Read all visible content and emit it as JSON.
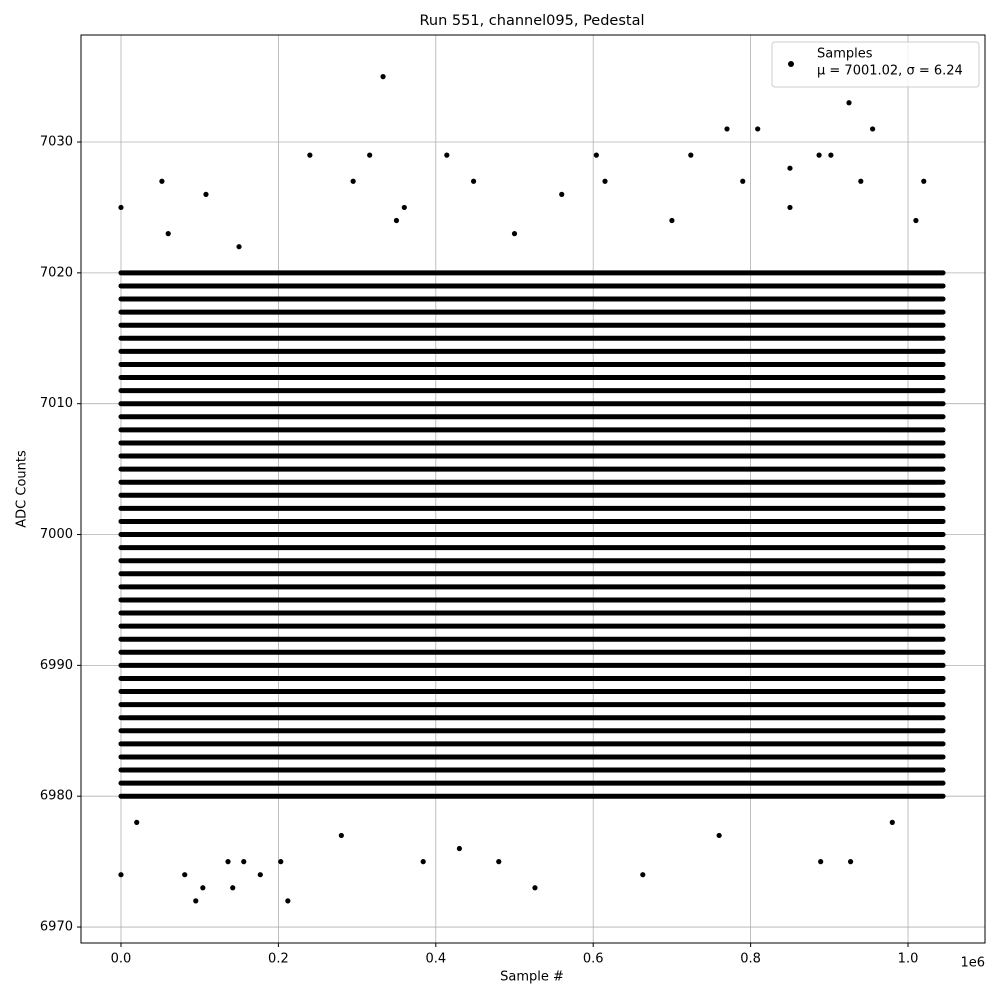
{
  "chart_data": {
    "type": "scatter",
    "title": "Run 551, channel095, Pedestal",
    "x_label": "Sample #",
    "y_label": "ADC Counts",
    "x_offset_label": "1e6",
    "xlim": [
      -50800,
      1097800
    ],
    "ylim": [
      6968.78,
      7038.18
    ],
    "xticks": [
      {
        "value": 0,
        "label": "0.0"
      },
      {
        "value": 200000,
        "label": "0.2"
      },
      {
        "value": 400000,
        "label": "0.4"
      },
      {
        "value": 600000,
        "label": "0.6"
      },
      {
        "value": 800000,
        "label": "0.8"
      },
      {
        "value": 1000000,
        "label": "1.0"
      }
    ],
    "yticks": [
      6970,
      6980,
      6990,
      7000,
      7010,
      7020,
      7030
    ],
    "grid": true,
    "legend": "upper right",
    "series": [
      {
        "name": "Samples",
        "legend_note": "μ = 7001.02, σ = 6.24",
        "color": "#000000",
        "x": [
          0,
          95000,
          212000,
          333000,
          925000,
          770000,
          809000,
          955000,
          526000,
          663000,
          927000,
          104000,
          142000,
          240000,
          316000,
          604000,
          724000,
          887000,
          902000,
          414000,
          480000,
          384000,
          203000,
          136000,
          156000,
          81000,
          177000,
          889000,
          0,
          52000,
          108000,
          295000,
          360000,
          448000,
          560000,
          615000,
          790000,
          850000,
          940000,
          1020000,
          60000,
          150000,
          350000,
          500000,
          700000,
          850000,
          1010000,
          20000,
          280000,
          430000,
          760000,
          980000
        ],
        "values": [
          6974,
          6972,
          6972,
          7035,
          7033,
          7031,
          7031,
          7031,
          6973,
          6974,
          6975,
          6973,
          6973,
          7029,
          7029,
          7029,
          7029,
          7029,
          7029,
          7029,
          6975,
          6975,
          6975,
          6975,
          6975,
          6974,
          6974,
          6975,
          7025,
          7027,
          7026,
          7027,
          7025,
          7027,
          7026,
          7027,
          7027,
          7028,
          7027,
          7027,
          7023,
          7022,
          7024,
          7023,
          7024,
          7025,
          7024,
          6978,
          6977,
          6976,
          6977,
          6978
        ]
      }
    ],
    "dense_rows": {
      "x_extent": [
        0,
        1044500
      ],
      "values": [
        6980,
        6981,
        6982,
        6983,
        6984,
        6985,
        6986,
        6987,
        6988,
        6989,
        6990,
        6991,
        6992,
        6993,
        6994,
        6995,
        6996,
        6997,
        6998,
        6999,
        7000,
        7001,
        7002,
        7003,
        7004,
        7005,
        7006,
        7007,
        7008,
        7009,
        7010,
        7011,
        7012,
        7013,
        7014,
        7015,
        7016,
        7017,
        7018,
        7019,
        7020
      ]
    }
  }
}
